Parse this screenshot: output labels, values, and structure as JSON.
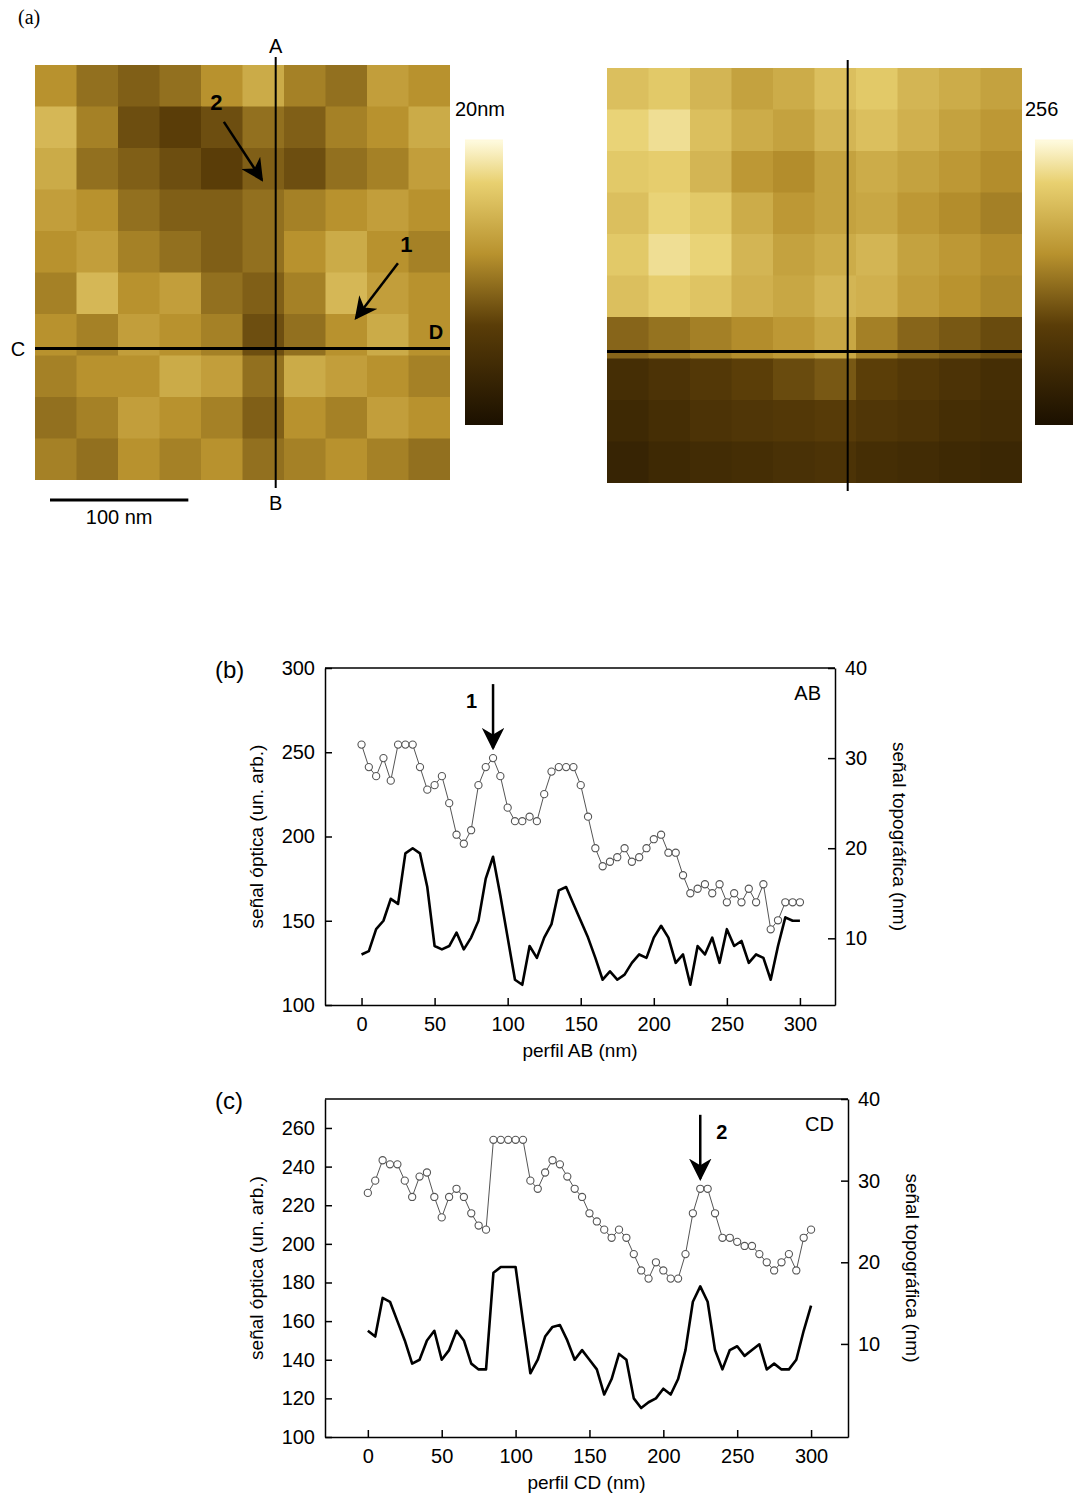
{
  "chart_data": [
    {
      "type": "heatmap",
      "panel_label": "(a)",
      "image_size": 300,
      "images": [
        {
          "colorbar_range": [
            0,
            20
          ],
          "colorbar_ticks": [
            {
              "value": 20,
              "label": "20nm"
            }
          ],
          "cells": [
            [
              12,
              10,
              9,
              10,
              12,
              14,
              11,
              10,
              13,
              12
            ],
            [
              15,
              11,
              8,
              7,
              8,
              10,
              9,
              11,
              12,
              14
            ],
            [
              14,
              10,
              9,
              8,
              7,
              9,
              8,
              10,
              11,
              13
            ],
            [
              13,
              12,
              10,
              9,
              9,
              10,
              11,
              12,
              13,
              12
            ],
            [
              12,
              13,
              11,
              10,
              9,
              10,
              12,
              14,
              12,
              11
            ],
            [
              11,
              15,
              12,
              13,
              10,
              9,
              11,
              15,
              13,
              12
            ],
            [
              12,
              11,
              13,
              12,
              11,
              8,
              10,
              12,
              14,
              12
            ],
            [
              11,
              12,
              12,
              14,
              13,
              10,
              14,
              13,
              12,
              11
            ],
            [
              10,
              11,
              13,
              12,
              11,
              9,
              12,
              11,
              13,
              12
            ],
            [
              11,
              10,
              12,
              11,
              12,
              10,
              11,
              12,
              11,
              10
            ]
          ]
        },
        {
          "colorbar_range": [
            0,
            256
          ],
          "colorbar_ticks": [
            256
          ],
          "cells": [
            [
              200,
              210,
              190,
              170,
              180,
              200,
              210,
              190,
              180,
              170
            ],
            [
              220,
              230,
              200,
              180,
              170,
              190,
              200,
              185,
              170,
              160
            ],
            [
              210,
              215,
              190,
              160,
              150,
              170,
              180,
              170,
              160,
              150
            ],
            [
              200,
              220,
              210,
              180,
              160,
              170,
              175,
              160,
              150,
              140
            ],
            [
              210,
              230,
              220,
              190,
              170,
              180,
              190,
              170,
              160,
              150
            ],
            [
              200,
              215,
              205,
              185,
              175,
              190,
              185,
              165,
              155,
              145
            ],
            [
              120,
              130,
              140,
              150,
              160,
              175,
              140,
              120,
              110,
              100
            ],
            [
              60,
              70,
              80,
              90,
              100,
              110,
              90,
              80,
              70,
              60
            ],
            [
              50,
              60,
              70,
              75,
              80,
              85,
              75,
              70,
              60,
              55
            ],
            [
              40,
              50,
              55,
              60,
              65,
              70,
              60,
              55,
              50,
              45
            ]
          ]
        }
      ],
      "profile_lines": [
        {
          "labels": [
            "A",
            "B"
          ],
          "x": 174
        },
        {
          "labels": [
            "C",
            "D"
          ],
          "y": 205
        }
      ],
      "markers": [
        {
          "label": "1",
          "x": 232,
          "y": 183
        },
        {
          "label": "2",
          "x": 164,
          "y": 83
        }
      ],
      "scale_bar": {
        "value": 100,
        "label": "100 nm"
      }
    },
    {
      "type": "line",
      "panel_label": "(b)",
      "title": "AB",
      "xlabel": "perfil AB (nm)",
      "ylabel": "señal óptica (un. arb.)",
      "y2label": "señal topográfica (nm)",
      "x": [
        0,
        5,
        10,
        15,
        20,
        25,
        30,
        35,
        40,
        45,
        50,
        55,
        60,
        65,
        70,
        75,
        80,
        85,
        90,
        95,
        100,
        105,
        110,
        115,
        120,
        125,
        130,
        135,
        140,
        145,
        150,
        155,
        160,
        165,
        170,
        175,
        180,
        185,
        190,
        195,
        200,
        205,
        210,
        215,
        220,
        225,
        230,
        235,
        240,
        245,
        250,
        255,
        260,
        265,
        270,
        275,
        280,
        285,
        290,
        295,
        300
      ],
      "xlim": [
        -25,
        324
      ],
      "xticks": [
        0,
        50,
        100,
        150,
        200,
        250,
        300
      ],
      "ylim": [
        100,
        300
      ],
      "yticks": [
        100,
        150,
        200,
        250,
        300
      ],
      "y2lim": [
        2.6,
        40
      ],
      "y2ticks": [
        10,
        20,
        30,
        40
      ],
      "series": [
        {
          "color": "#000000",
          "line_style": "solid",
          "values": [
            130,
            132,
            145,
            150,
            163,
            160,
            190,
            193,
            190,
            170,
            135,
            133,
            135,
            143,
            133,
            140,
            150,
            175,
            188,
            165,
            140,
            115,
            112,
            135,
            128,
            140,
            148,
            168,
            170,
            160,
            150,
            140,
            128,
            115,
            120,
            115,
            118,
            125,
            130,
            128,
            140,
            147,
            140,
            125,
            130,
            112,
            135,
            130,
            140,
            125,
            145,
            135,
            138,
            125,
            130,
            128,
            115,
            135,
            152,
            150,
            150
          ]
        },
        {
          "color": "#555555",
          "line_style": "solid",
          "marker": "circle",
          "axis": "y2",
          "values": [
            31.5,
            29,
            28,
            30,
            27.5,
            31.5,
            31.5,
            31.5,
            29,
            26.5,
            27,
            28,
            25,
            21.5,
            20.5,
            22,
            27,
            29,
            30,
            28,
            24.5,
            23,
            23,
            23.5,
            23,
            26,
            28.5,
            29,
            29,
            29,
            27,
            23.5,
            20,
            18,
            18.5,
            19,
            20,
            18.5,
            19,
            20,
            21,
            21.5,
            19.5,
            19.5,
            17,
            15,
            15.5,
            16,
            15,
            16,
            14,
            15,
            14,
            15.5,
            14,
            16,
            11,
            12,
            14,
            14,
            14
          ]
        }
      ],
      "annotations": [
        {
          "text": "1",
          "x": 90
        }
      ]
    },
    {
      "type": "line",
      "panel_label": "(c)",
      "title": "CD",
      "xlabel": "perfil CD (nm)",
      "ylabel": "señal óptica (un. arb.)",
      "y2label": "señal topográfica (nm)",
      "x": [
        0,
        5,
        10,
        15,
        20,
        25,
        30,
        35,
        40,
        45,
        50,
        55,
        60,
        65,
        70,
        75,
        80,
        85,
        90,
        95,
        100,
        105,
        110,
        115,
        120,
        125,
        130,
        135,
        140,
        145,
        150,
        155,
        160,
        165,
        170,
        175,
        180,
        185,
        190,
        195,
        200,
        205,
        210,
        215,
        220,
        225,
        230,
        235,
        240,
        245,
        250,
        255,
        260,
        265,
        270,
        275,
        280,
        285,
        290,
        295,
        300
      ],
      "xlim": [
        -29,
        325
      ],
      "xticks": [
        0,
        50,
        100,
        150,
        200,
        250,
        300
      ],
      "ylim": [
        100,
        275
      ],
      "yticks": [
        100,
        120,
        140,
        160,
        180,
        200,
        220,
        240,
        260
      ],
      "y2lim": [
        -1.4,
        40
      ],
      "y2ticks": [
        10,
        20,
        30,
        40
      ],
      "series": [
        {
          "color": "#000000",
          "line_style": "solid",
          "values": [
            155,
            152,
            172,
            170,
            160,
            150,
            138,
            140,
            150,
            155,
            140,
            145,
            155,
            150,
            138,
            135,
            135,
            185,
            188,
            188,
            188,
            160,
            133,
            140,
            152,
            157,
            158,
            150,
            140,
            145,
            140,
            135,
            122,
            130,
            143,
            140,
            120,
            115,
            118,
            120,
            125,
            122,
            130,
            145,
            170,
            178,
            170,
            145,
            135,
            145,
            147,
            142,
            145,
            148,
            135,
            138,
            135,
            135,
            140,
            155,
            168
          ]
        },
        {
          "color": "#555555",
          "line_style": "solid",
          "marker": "circle",
          "axis": "y2",
          "values": [
            28.5,
            30,
            32.5,
            32,
            32,
            30,
            28,
            30.5,
            31,
            28,
            25.5,
            28,
            29,
            28,
            26,
            24.5,
            24,
            35,
            35,
            35,
            35,
            35,
            30,
            29,
            31,
            32.5,
            32,
            30.5,
            29,
            28,
            26,
            25,
            24,
            23,
            24,
            23,
            21,
            19,
            18,
            20,
            19,
            18,
            18,
            21,
            26,
            29,
            29,
            26,
            23,
            23,
            22.5,
            22,
            22,
            21,
            20,
            19,
            20,
            21,
            19,
            23,
            24
          ]
        }
      ],
      "annotations": [
        {
          "text": "2",
          "x": 225
        }
      ]
    }
  ]
}
